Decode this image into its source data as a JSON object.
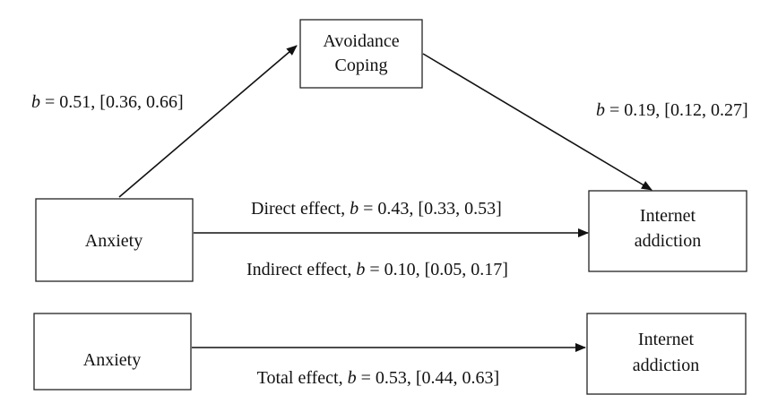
{
  "nodes": [
    {
      "lines": [
        "Avoidance",
        "Coping"
      ]
    },
    {
      "lines": [
        "Anxiety"
      ]
    },
    {
      "lines": [
        "Internet",
        "addiction"
      ]
    },
    {
      "lines": [
        "Anxiety"
      ]
    },
    {
      "lines": [
        "Internet",
        "addiction"
      ]
    }
  ],
  "edges": [
    {
      "symbol": "b",
      "text": "= 0.51, [0.36, 0.66]"
    },
    {
      "symbol": "b",
      "text": "= 0.19, [0.12, 0.27]"
    },
    {
      "prefix": "Direct effect,",
      "symbol": "b",
      "text": "= 0.43, [0.33, 0.53]"
    },
    {
      "prefix": "Indirect effect,",
      "symbol": "b",
      "text": "= 0.10, [0.05, 0.17]"
    },
    {
      "prefix": "Total effect,",
      "symbol": "b",
      "text": "= 0.53, [0.44, 0.63]"
    }
  ]
}
